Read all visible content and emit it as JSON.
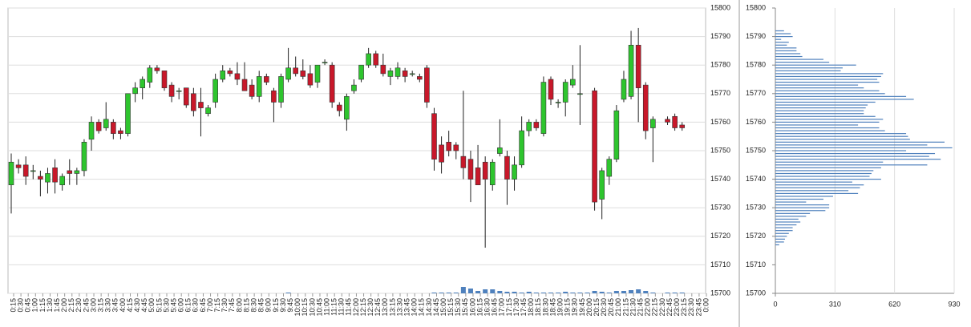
{
  "chart_data": [
    {
      "type": "candlestick",
      "categories": [
        "0:15",
        "0:30",
        "0:45",
        "1:00",
        "1:15",
        "1:30",
        "1:45",
        "2:00",
        "2:15",
        "2:30",
        "2:45",
        "3:00",
        "3:15",
        "3:30",
        "3:45",
        "4:00",
        "4:15",
        "4:30",
        "4:45",
        "5:00",
        "5:15",
        "5:30",
        "5:45",
        "6:00",
        "6:15",
        "6:30",
        "6:45",
        "7:00",
        "7:15",
        "7:30",
        "7:45",
        "8:00",
        "8:15",
        "8:30",
        "8:45",
        "9:00",
        "9:15",
        "9:30",
        "9:45",
        "10:00",
        "10:15",
        "10:30",
        "10:45",
        "11:00",
        "11:15",
        "11:30",
        "11:45",
        "12:00",
        "12:15",
        "12:30",
        "12:45",
        "13:00",
        "13:15",
        "13:30",
        "13:45",
        "14:00",
        "14:15",
        "14:30",
        "14:45",
        "15:00",
        "15:15",
        "15:30",
        "15:45",
        "16:00",
        "16:15",
        "16:30",
        "16:45",
        "17:00",
        "17:15",
        "17:30",
        "17:45",
        "18:00",
        "18:15",
        "18:30",
        "18:45",
        "19:00",
        "19:15",
        "19:30",
        "19:45",
        "20:00",
        "20:15",
        "20:30",
        "20:45",
        "21:00",
        "21:15",
        "21:30",
        "21:45",
        "22:00",
        "22:15",
        "22:30",
        "22:45",
        "23:00",
        "23:15",
        "23:30",
        "23:45",
        "0:00"
      ],
      "open": [
        15738,
        15745,
        15745,
        15743,
        15741,
        15739,
        15744,
        15738,
        15743,
        15742,
        15743,
        15754,
        15760,
        15758,
        15760,
        15757,
        15756,
        15770,
        15772,
        15774,
        15779,
        15778,
        15773,
        15771,
        15772,
        15770,
        15767,
        15763,
        15767,
        15775,
        15778,
        15777,
        15775,
        15773,
        15769,
        15776,
        15771,
        15767,
        15775,
        15779,
        15778,
        15777,
        15774,
        15781,
        15780,
        15766,
        15761,
        15771,
        15775,
        15780,
        15784,
        15780,
        15776,
        15776,
        15778,
        15777,
        15776,
        15779,
        15763,
        15752,
        15753,
        15752,
        15748,
        15747,
        15744,
        15746,
        15738,
        15749,
        15748,
        15740,
        15745,
        15757,
        15760,
        15756,
        15775,
        15767,
        15767,
        15773,
        15770,
        null,
        15771,
        15733,
        15741,
        15747,
        15768,
        15769,
        15787,
        15773,
        15758,
        null,
        15761,
        15762,
        15759,
        null,
        null,
        null
      ],
      "high": [
        15749,
        15747,
        15748,
        15745,
        15743,
        15744,
        15747,
        15742,
        15747,
        15744,
        15754,
        15762,
        15761,
        15767,
        15761,
        15758,
        15770,
        15774,
        15776,
        15780,
        15780,
        15778,
        15774,
        15772,
        15772,
        15772,
        15772,
        15766,
        15777,
        15780,
        15779,
        15781,
        15781,
        15775,
        15778,
        15777,
        15772,
        15777,
        15786,
        15783,
        15782,
        15780,
        15780,
        15782,
        15781,
        15767,
        15770,
        15775,
        15780,
        15786,
        15785,
        15784,
        15779,
        15781,
        15779,
        15778,
        15777,
        15780,
        15765,
        15755,
        15757,
        15753,
        15771,
        15750,
        15752,
        15748,
        15747,
        15761,
        15750,
        15748,
        15762,
        15761,
        15761,
        15776,
        15776,
        15768,
        15775,
        15780,
        15787,
        null,
        15772,
        15744,
        15748,
        15766,
        15778,
        15792,
        15793,
        15774,
        15762,
        null,
        15762,
        15763,
        15760,
        null,
        null,
        null
      ],
      "low": [
        15728,
        15742,
        15738,
        15740,
        15734,
        15735,
        15735,
        15736,
        15738,
        15738,
        15741,
        15750,
        15756,
        15757,
        15754,
        15754,
        15755,
        15767,
        15768,
        15772,
        15777,
        15771,
        15767,
        15768,
        15765,
        15762,
        15755,
        15762,
        15765,
        15774,
        15776,
        15773,
        15771,
        15768,
        15767,
        15773,
        15760,
        15765,
        15774,
        15776,
        15775,
        15772,
        15772,
        15780,
        15765,
        15762,
        15757,
        15770,
        15774,
        15779,
        15779,
        15776,
        15773,
        15775,
        15774,
        15776,
        15774,
        15765,
        15743,
        15742,
        15748,
        15747,
        15740,
        15732,
        15738,
        15716,
        15736,
        15748,
        15731,
        15736,
        15744,
        15755,
        15757,
        15755,
        15766,
        15765,
        15762,
        15772,
        15759,
        null,
        15729,
        15726,
        15738,
        15746,
        15767,
        15768,
        15760,
        15754,
        15746,
        null,
        15759,
        15757,
        15757,
        null,
        null,
        null
      ],
      "close": [
        15746,
        15744,
        15741,
        15743,
        15740,
        15742,
        15739,
        15741,
        15742,
        15743,
        15753,
        15760,
        15757,
        15761,
        15756,
        15756,
        15770,
        15772,
        15775,
        15779,
        15778,
        15772,
        15769,
        15771,
        15766,
        15764,
        15765,
        15765,
        15775,
        15778,
        15777,
        15775,
        15771,
        15769,
        15776,
        15774,
        15767,
        15776,
        15779,
        15777,
        15776,
        15773,
        15780,
        15781,
        15767,
        15764,
        15769,
        15773,
        15780,
        15784,
        15780,
        15777,
        15778,
        15779,
        15776,
        15777,
        15775,
        15767,
        15747,
        15746,
        15750,
        15750,
        15744,
        15740,
        15738,
        15740,
        15746,
        15751,
        15740,
        15745,
        15757,
        15760,
        15758,
        15774,
        15768,
        15767,
        15774,
        15775,
        15770,
        null,
        15732,
        15743,
        15747,
        15764,
        15775,
        15787,
        15772,
        15757,
        15761,
        null,
        15760,
        15758,
        15758,
        null,
        null,
        null
      ],
      "volume": [
        0,
        0,
        0,
        0,
        0,
        0,
        0,
        0,
        0,
        0,
        0,
        0,
        0,
        0,
        0,
        0,
        0,
        0,
        0,
        0,
        0,
        0,
        0,
        0,
        0,
        0,
        0,
        0,
        0,
        0,
        0,
        0,
        0,
        0,
        0,
        0,
        0,
        0,
        1,
        0,
        0,
        0,
        0,
        0,
        0,
        0,
        0,
        0,
        0,
        0,
        0,
        0,
        0,
        0,
        0,
        0,
        0,
        0,
        1,
        1,
        1,
        1,
        8,
        6,
        3,
        5,
        5,
        3,
        2,
        2,
        1,
        2,
        1,
        1,
        1,
        1,
        2,
        1,
        1,
        1,
        3,
        2,
        1,
        3,
        3,
        4,
        5,
        3,
        1,
        0,
        1,
        1,
        1,
        0,
        0,
        0
      ],
      "up_color": "#2ec52e",
      "down_color": "#c8182a",
      "volume_color": "#4f81bd",
      "ylim": [
        15700,
        15800
      ],
      "yticks": [
        15700,
        15710,
        15720,
        15730,
        15740,
        15750,
        15760,
        15770,
        15780,
        15790,
        15800
      ],
      "grid": true
    },
    {
      "type": "hbar",
      "y": [
        15792,
        15791,
        15790,
        15789,
        15788,
        15787,
        15786,
        15785,
        15784,
        15783,
        15782,
        15781,
        15780,
        15779,
        15778,
        15777,
        15776,
        15775,
        15774,
        15773,
        15772,
        15771,
        15770,
        15769,
        15768,
        15767,
        15766,
        15765,
        15764,
        15763,
        15762,
        15761,
        15760,
        15759,
        15758,
        15757,
        15756,
        15755,
        15754,
        15753,
        15752,
        15751,
        15750,
        15749,
        15748,
        15747,
        15746,
        15745,
        15744,
        15743,
        15742,
        15741,
        15740,
        15739,
        15738,
        15737,
        15736,
        15735,
        15734,
        15733,
        15732,
        15731,
        15730,
        15729,
        15728,
        15727,
        15726,
        15725,
        15724,
        15723,
        15722,
        15721,
        15720,
        15719,
        15718,
        15717
      ],
      "values": [
        45,
        80,
        90,
        30,
        70,
        60,
        110,
        110,
        130,
        140,
        250,
        280,
        420,
        350,
        340,
        560,
        550,
        530,
        540,
        430,
        460,
        540,
        570,
        680,
        720,
        520,
        480,
        470,
        460,
        460,
        520,
        560,
        540,
        430,
        540,
        570,
        680,
        690,
        700,
        880,
        790,
        920,
        680,
        830,
        800,
        860,
        560,
        790,
        550,
        510,
        500,
        490,
        550,
        400,
        460,
        440,
        380,
        430,
        300,
        250,
        160,
        280,
        280,
        260,
        180,
        160,
        120,
        130,
        110,
        90,
        90,
        70,
        60,
        50,
        45,
        20
      ],
      "color": "#4f81bd",
      "xlim": [
        0,
        930
      ],
      "xticks": [
        0,
        310,
        620,
        930
      ],
      "ylim": [
        15700,
        15800
      ],
      "yticks": [
        15700,
        15710,
        15720,
        15730,
        15740,
        15750,
        15760,
        15770,
        15780,
        15790,
        15800
      ],
      "grid": true
    }
  ]
}
